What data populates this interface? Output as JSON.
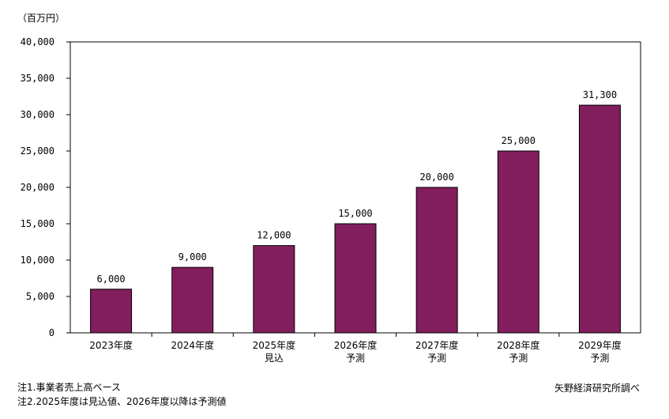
{
  "chart_data": {
    "type": "bar",
    "unit_label": "（百万円）",
    "categories": [
      [
        "2023年度"
      ],
      [
        "2024年度"
      ],
      [
        "2025年度",
        "見込"
      ],
      [
        "2026年度",
        "予測"
      ],
      [
        "2027年度",
        "予測"
      ],
      [
        "2028年度",
        "予測"
      ],
      [
        "2029年度",
        "予測"
      ]
    ],
    "values": [
      6000,
      9000,
      12000,
      15000,
      20000,
      25000,
      31300
    ],
    "value_labels": [
      "6,000",
      "9,000",
      "12,000",
      "15,000",
      "20,000",
      "25,000",
      "31,300"
    ],
    "ylim": [
      0,
      40000
    ],
    "yticks": [
      0,
      5000,
      10000,
      15000,
      20000,
      25000,
      30000,
      35000,
      40000
    ],
    "ytick_labels": [
      "0",
      "5,000",
      "10,000",
      "15,000",
      "20,000",
      "25,000",
      "30,000",
      "35,000",
      "40,000"
    ],
    "bar_color": "#821e5e",
    "grid": false,
    "legend": "none"
  },
  "notes": {
    "note1": "注1.事業者売上高ベース",
    "note2": "注2.2025年度は見込値、2026年度以降は予測値"
  },
  "source": "矢野経済研究所調べ"
}
